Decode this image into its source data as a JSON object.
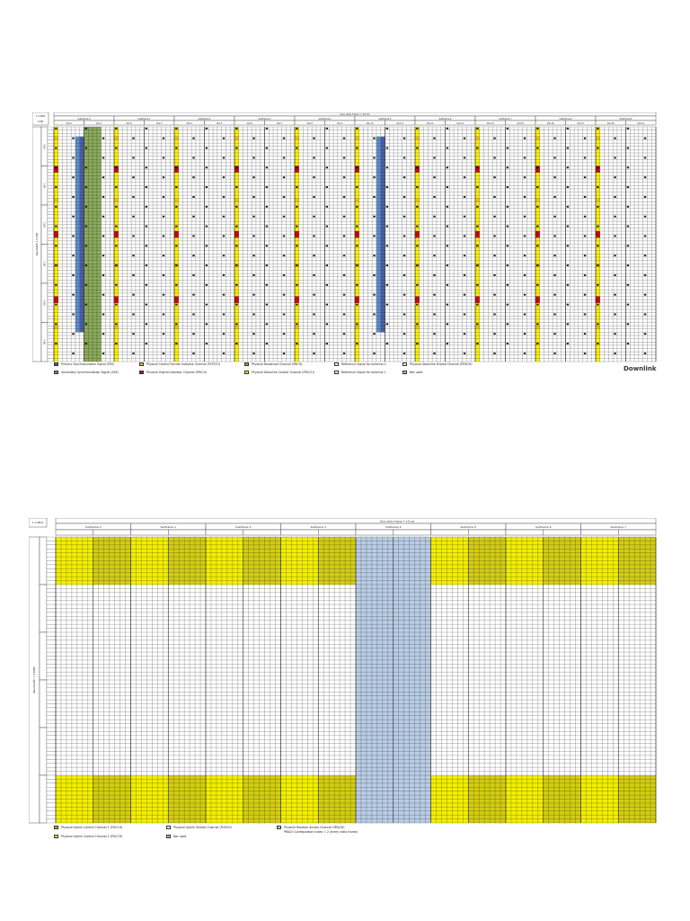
{
  "downlink": {
    "title": "Downlink",
    "bandwidth_box": [
      "1.4 MHz",
      "6 RB"
    ],
    "frame_label": "One radio frame = 10 ms",
    "subframes": [
      "Subframe 0",
      "Subframe 1",
      "Subframe 2",
      "Subframe 3",
      "Subframe 4",
      "Subframe 5",
      "Subframe 6",
      "Subframe 7",
      "Subframe 8",
      "Subframe 9"
    ],
    "slots": [
      "Slot 0",
      "Slot 1",
      "Slot 2",
      "Slot 3",
      "Slot 4",
      "Slot 5",
      "Slot 6",
      "Slot 7",
      "Slot 8",
      "Slot 9",
      "Slot 10",
      "Slot 11",
      "Slot 12",
      "Slot 13",
      "Slot 14",
      "Slot 15",
      "Slot 16",
      "Slot 17",
      "Slot 18",
      "Slot 19"
    ],
    "axis_label": "Bandwidth 1.4 MHz",
    "rb_labels": [
      "RB 0",
      "RB 1",
      "RB 2",
      "RB 3",
      "RB 4",
      "RB 5"
    ],
    "colors": {
      "pss": "#4a5ea8",
      "sss": "#5b8fc9",
      "pcfich": "#f2c200",
      "phich": "#c8001a",
      "pbch": "#8bab5a",
      "pdcch": "#fff200"
    },
    "legend": [
      {
        "label": "Primary Synchronization Signal (PSS)",
        "swatch": "#4a5ea8"
      },
      {
        "label": "Physical Control Format Indicator Channel (PCFICH)",
        "swatch": "#f2c200"
      },
      {
        "label": "Physical Broadcast Channel (PBCH)",
        "swatch": "#8bab5a"
      },
      {
        "label": "Reference Signal for antenna 0",
        "swatch": "#ffffff"
      },
      {
        "label": "Physical Downlink Shared Channel (PDSCH)",
        "swatch": "#ffffff"
      },
      {
        "label": "Secondary Synchronization Signal (SSS)",
        "swatch": "#5b8fc9"
      },
      {
        "label": "Physical Hybrid Indicator Channel (PHICH)",
        "swatch": "#c8001a"
      },
      {
        "label": "Physical Downlink Control Channel (PDCCH)",
        "swatch": "#fff200"
      },
      {
        "label": "Reference Signal for antenna 1",
        "swatch": "#ffffff"
      },
      {
        "label": "Not used",
        "swatch": "x"
      }
    ]
  },
  "uplink": {
    "bandwidth_box": "1.4 MHz",
    "frame_label": "One radio frame = 10 ms",
    "subframes": [
      "Subframe 0",
      "Subframe 1",
      "Subframe 2",
      "Subframe 3",
      "Subframe 4",
      "Subframe 5",
      "Subframe 6",
      "Subframe 7"
    ],
    "axis_label": "Bandwidth 1.4 MHz",
    "colors": {
      "pucch1": "#b8b020",
      "pucch2": "#f2ee00",
      "prach": "#b8cce4",
      "pusch": "#ffffff"
    },
    "legend": [
      {
        "label": "Physical Uplink Control Channel 1 (PUCCH)",
        "swatch": "#b8b020"
      },
      {
        "label": "Physical Uplink Shared Channel (PUSCH)",
        "swatch": "#ffffff"
      },
      {
        "label": "Physical Random Access Channel (PRACH)",
        "swatch": "#b8cce4"
      },
      {
        "label": "Physical Uplink Control Channel 2 (PUCCH)",
        "swatch": "#f2ee00"
      },
      {
        "label": "Not used",
        "swatch": "x"
      },
      {
        "label": "PRACH Configuration Index = 2 (every radio frame)",
        "swatch": ""
      }
    ]
  }
}
